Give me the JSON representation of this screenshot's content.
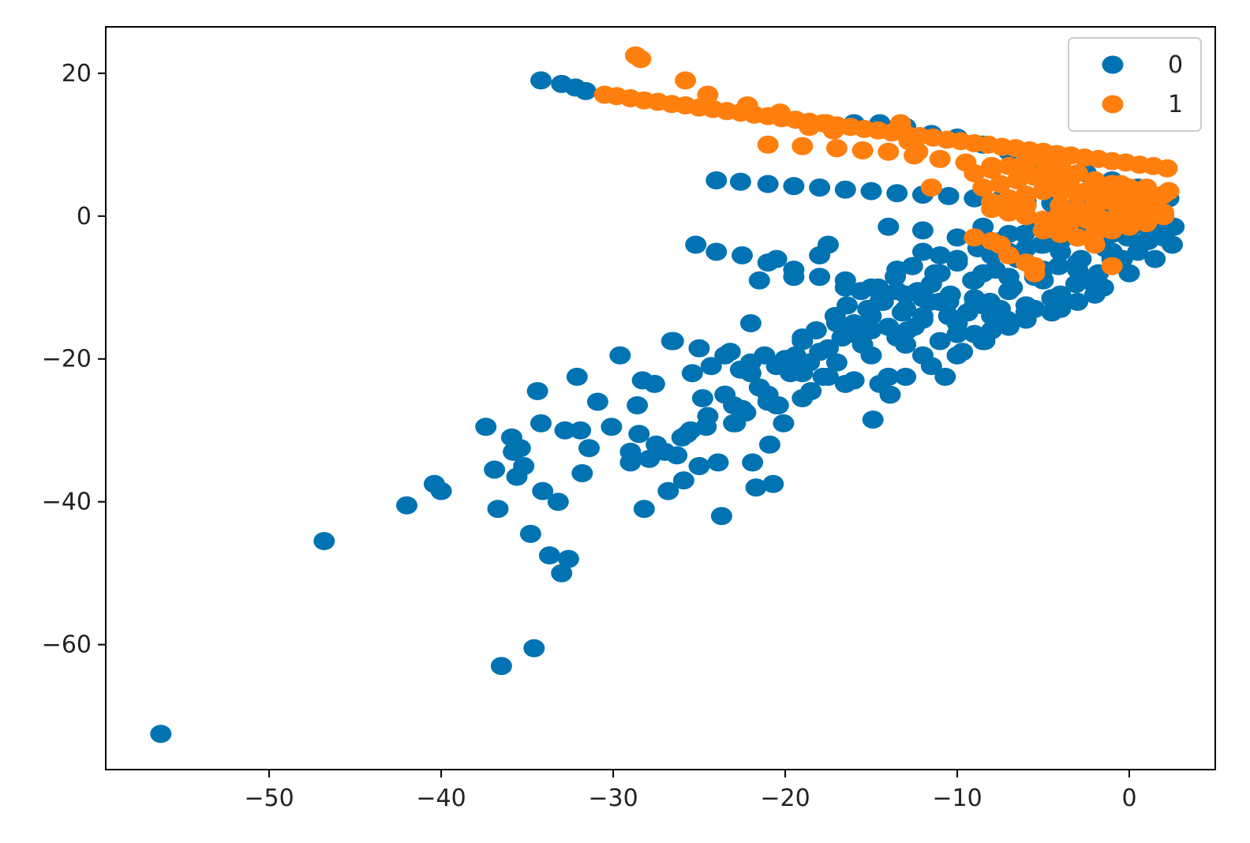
{
  "chart_data": {
    "type": "scatter",
    "title": "",
    "xlabel": "",
    "ylabel": "",
    "xlim": [
      -59.5,
      5.0
    ],
    "ylim": [
      -77.5,
      26.5
    ],
    "xticks": [
      -50,
      -40,
      -30,
      -20,
      -10,
      0
    ],
    "yticks": [
      20,
      0,
      -20,
      -40,
      -60
    ],
    "xtick_labels": [
      "−50",
      "−40",
      "−30",
      "−20",
      "−10",
      "0"
    ],
    "ytick_labels": [
      "20",
      "0",
      "−20",
      "−40",
      "−60"
    ],
    "grid": false,
    "legend_position": "top-right",
    "series": [
      {
        "name": "0",
        "color": "#0173b2",
        "x": [
          -56.3,
          -46.8,
          -42.0,
          -40.4,
          -40.0,
          -37.4,
          -36.9,
          -36.7,
          -36.5,
          -35.9,
          -35.8,
          -35.6,
          -35.4,
          -35.2,
          -34.8,
          -34.6,
          -34.4,
          -34.2,
          -34.1,
          -33.7,
          -33.2,
          -33.0,
          -32.8,
          -32.6,
          -32.1,
          -31.9,
          -31.8,
          -31.4,
          -30.9,
          -30.1,
          -29.6,
          -29.0,
          -28.6,
          -28.3,
          -28.2,
          -27.9,
          -27.6,
          -26.8,
          -26.6,
          -26.3,
          -25.9,
          -25.7,
          -25.4,
          -25.0,
          -24.8,
          -24.6,
          -24.3,
          -23.9,
          -23.7,
          -23.5,
          -23.2,
          -22.9,
          -22.6,
          -22.3,
          -21.9,
          -21.7,
          -21.5,
          -21.2,
          -20.9,
          -20.7,
          -20.4,
          -20.1,
          -19.7,
          -19.4,
          -19.0,
          -18.6,
          -18.2,
          -17.8,
          -17.5,
          -17.1,
          -16.7,
          -16.4,
          -16.0,
          -15.6,
          -15.2,
          -14.9,
          -14.6,
          -14.3,
          -13.9,
          -13.6,
          -13.2,
          -12.9,
          -12.6,
          -12.3,
          -12.0,
          -11.6,
          -11.3,
          -11.0,
          -10.7,
          -10.4,
          -10.0,
          -9.7,
          -9.4,
          -9.1,
          -8.8,
          -8.4,
          -8.1,
          -7.8,
          -7.5,
          -7.1,
          -6.8,
          -6.5,
          -6.1,
          -5.8,
          -5.5,
          -5.1,
          -4.8,
          -4.5,
          -4.1,
          -3.8,
          -3.4,
          -3.1,
          -2.8,
          -2.4,
          -2.1,
          -1.8,
          -1.4,
          -1.1,
          -0.8,
          -0.4,
          -0.1,
          0.3,
          0.7,
          1.1,
          1.5,
          1.9,
          2.3,
          2.6,
          -34.2,
          -33.0,
          -32.2,
          -31.6,
          -24.0,
          -22.6,
          -21.0,
          -19.5,
          -18.0,
          -16.5,
          -15.0,
          -13.5,
          -12.0,
          -10.5,
          -9.0,
          -7.5,
          -6.0,
          -4.5,
          -3.0,
          -1.5,
          0.0,
          1.5,
          -25.2,
          -24.0,
          -22.5,
          -21.0,
          -19.5,
          -18.0,
          -16.5,
          -15.0,
          -13.5,
          -12.0,
          -10.5,
          -9.0,
          -7.5,
          -6.0,
          -4.5,
          -3.0,
          -1.5,
          0.0,
          1.5,
          2.5,
          -26.5,
          -25.0,
          -23.5,
          -22.0,
          -20.5,
          -19.0,
          -17.5,
          -16.0,
          -14.5,
          -13.0,
          -11.5,
          -10.0,
          -8.5,
          -7.0,
          -5.5,
          -4.0,
          -2.5,
          -1.0,
          0.5,
          2.0,
          -16.0,
          -14.5,
          -13.0,
          -11.5,
          -10.0,
          -8.5,
          -7.0,
          -5.5,
          -4.0,
          -2.5,
          -1.0,
          0.5,
          2.0,
          -17.5,
          -14.0,
          -12.0,
          -10.0,
          -8.5,
          -7.0,
          -5.5,
          -4.0,
          -2.5,
          -1.0,
          0.5,
          -12.0,
          -10.0,
          -8.0,
          -6.0,
          -4.0,
          -2.0,
          0.0,
          -11.0,
          -9.0,
          -7.0,
          -5.0,
          -3.0,
          -1.0,
          1.0,
          -13.0,
          -11.0,
          -9.0,
          -7.0,
          -5.0,
          -3.0,
          -1.0,
          -12.0,
          -10.0,
          -8.0,
          -6.0,
          -4.0,
          -2.0,
          -10.0,
          -8.0,
          -6.0,
          -4.0,
          -2.0,
          -13.0,
          -11.0,
          -9.0,
          -7.0,
          -15.0,
          -12.5,
          -10.5,
          -8.5,
          -17.0,
          -15.0,
          -13.0,
          -11.0,
          -19.0,
          -16.0,
          -14.0,
          -12.0,
          -20.0,
          -18.0,
          -15.5,
          -13.5,
          -22.0,
          -19.5,
          -17.0,
          -15.0,
          -21.0,
          -18.5,
          -16.5,
          -14.0,
          -23.0,
          -21.0,
          -19.0,
          -24.5,
          -22.5,
          -20.5,
          -25.5,
          -23.0,
          -27.5,
          -26.0,
          -29.0,
          -27.0,
          -28.5,
          -22.0,
          -21.5,
          -20.5,
          -19.5,
          -18.0,
          -16.5,
          -14.5,
          -13.5,
          -11.5,
          -10.0,
          -8.5,
          -7.0,
          -6.0,
          -5.0,
          -4.0,
          -3.0,
          -2.0,
          -1.0,
          0.0,
          1.0,
          2.0
        ],
        "y": [
          -72.5,
          -45.5,
          -40.5,
          -37.5,
          -38.5,
          -29.5,
          -35.5,
          -41.0,
          -63.0,
          -31.0,
          -33.0,
          -36.5,
          -32.5,
          -35.0,
          -44.5,
          -60.5,
          -24.5,
          -29.0,
          -38.5,
          -47.5,
          -40.0,
          -50.0,
          -30.0,
          -48.0,
          -22.5,
          -30.0,
          -36.0,
          -32.5,
          -26.0,
          -29.5,
          -19.5,
          -33.0,
          -26.5,
          -23.0,
          -41.0,
          -34.0,
          -23.5,
          -38.5,
          -17.5,
          -33.5,
          -37.0,
          -30.5,
          -22.0,
          -35.0,
          -25.5,
          -29.5,
          -21.0,
          -34.5,
          -42.0,
          -25.0,
          -19.0,
          -29.0,
          -21.5,
          -27.5,
          -34.5,
          -38.0,
          -24.0,
          -19.5,
          -32.0,
          -37.5,
          -26.5,
          -29.0,
          -22.0,
          -19.5,
          -17.5,
          -20.5,
          -16.0,
          -22.5,
          -18.5,
          -14.0,
          -17.0,
          -12.5,
          -15.0,
          -10.5,
          -13.0,
          -28.5,
          -10.0,
          -12.0,
          -25.0,
          -8.5,
          -13.5,
          -16.0,
          -7.0,
          -10.5,
          -19.5,
          -12.0,
          -8.0,
          -5.5,
          -22.5,
          -11.0,
          -6.0,
          -19.0,
          -13.5,
          -9.0,
          -4.5,
          -17.5,
          -12.0,
          -7.5,
          -3.5,
          -14.5,
          -10.0,
          -6.0,
          -2.5,
          -13.0,
          -8.5,
          -4.0,
          -1.5,
          -11.5,
          -7.0,
          -3.0,
          -0.5,
          -9.5,
          -6.0,
          -2.5,
          0.5,
          -8.0,
          -4.5,
          -1.5,
          1.0,
          -6.0,
          -3.0,
          -0.5,
          1.5,
          -3.5,
          -1.5,
          0.5,
          2.5,
          -1.5,
          19.0,
          18.5,
          18.0,
          17.5,
          5.0,
          4.8,
          4.5,
          4.2,
          4.0,
          3.7,
          3.5,
          3.2,
          3.0,
          2.8,
          2.5,
          2.3,
          2.0,
          1.8,
          1.5,
          1.3,
          1.0,
          0.8,
          -4.0,
          -5.0,
          -5.5,
          -6.5,
          -7.5,
          -8.5,
          -9.0,
          -10.0,
          -10.5,
          -11.5,
          -12.0,
          -12.5,
          -13.0,
          -13.5,
          -13.5,
          -12.0,
          -10.0,
          -8.0,
          -6.0,
          -4.0,
          -17.5,
          -18.5,
          -19.5,
          -20.5,
          -21.0,
          -22.0,
          -22.5,
          -23.0,
          -23.5,
          -22.5,
          -21.0,
          -19.5,
          -17.5,
          -15.5,
          -13.0,
          -11.0,
          -9.0,
          -7.0,
          -5.0,
          -3.0,
          13.0,
          13.0,
          12.5,
          11.5,
          11.0,
          10.0,
          9.0,
          8.0,
          7.0,
          6.0,
          5.0,
          4.0,
          3.0,
          -4.0,
          -1.5,
          -2.0,
          -3.0,
          -1.5,
          -2.5,
          -1.0,
          -0.5,
          -1.0,
          0.0,
          0.5,
          -5.0,
          -6.0,
          -5.5,
          -4.5,
          -3.5,
          -2.5,
          -1.5,
          -8.0,
          -9.0,
          -8.5,
          -7.5,
          -6.5,
          -5.0,
          -3.5,
          -11.0,
          -12.0,
          -11.5,
          -10.5,
          -9.0,
          -7.5,
          -6.0,
          -14.0,
          -15.0,
          -14.0,
          -12.5,
          -11.0,
          -9.0,
          -16.5,
          -16.0,
          -14.5,
          -13.0,
          -11.0,
          -18.0,
          -17.5,
          -16.5,
          -15.0,
          -16.0,
          -15.5,
          -14.0,
          -12.5,
          -15.0,
          -14.0,
          -13.0,
          -12.0,
          -17.0,
          -16.5,
          -15.5,
          -14.5,
          -20.0,
          -19.0,
          -18.0,
          -17.0,
          -22.0,
          -21.5,
          -20.5,
          -19.5,
          -25.0,
          -24.5,
          -23.5,
          -22.5,
          -26.5,
          -26.0,
          -25.5,
          -28.0,
          -27.0,
          -26.5,
          -30.0,
          -29.0,
          -32.0,
          -31.0,
          -34.5,
          -33.0,
          -30.5,
          -15.0,
          -9.0,
          -6.0,
          -8.5,
          -5.5,
          -10.0,
          -12.0,
          -7.5,
          -9.5,
          -6.5,
          -8.0,
          -5.0,
          -6.5,
          -4.0,
          -5.0,
          -3.0,
          -3.5,
          -2.5,
          -2.0,
          -1.5,
          -1.0
        ]
      },
      {
        "name": "1",
        "color": "#ff7f0e",
        "x": [
          -28.7,
          -28.4,
          -25.8,
          -24.5,
          -22.2,
          -20.3,
          -18.6,
          -17.6,
          -17.2,
          -13.3,
          -12.8,
          -12.3,
          -30.5,
          -29.8,
          -29.0,
          -28.2,
          -27.4,
          -26.6,
          -25.8,
          -25.0,
          -24.2,
          -23.4,
          -22.6,
          -21.8,
          -21.0,
          -20.2,
          -19.4,
          -18.6,
          -17.8,
          -17.0,
          -16.2,
          -15.4,
          -14.6,
          -13.8,
          -13.0,
          -12.2,
          -11.4,
          -10.6,
          -9.8,
          -9.0,
          -8.2,
          -7.4,
          -6.6,
          -5.8,
          -5.0,
          -4.2,
          -3.4,
          -2.6,
          -1.8,
          -1.0,
          -0.2,
          0.6,
          1.4,
          2.2,
          -21.0,
          -19.0,
          -17.0,
          -15.5,
          -14.0,
          -12.5,
          -11.0,
          -9.5,
          -8.0,
          -6.5,
          -5.0,
          -3.5,
          -2.0,
          -0.5,
          1.0,
          2.3,
          -9.0,
          -8.0,
          -7.0,
          -6.0,
          -5.0,
          -4.0,
          -3.0,
          -2.0,
          -1.0,
          0.0,
          1.0,
          2.0,
          -8.5,
          -7.5,
          -6.5,
          -5.5,
          -4.5,
          -3.5,
          -2.5,
          -1.5,
          -0.5,
          0.5,
          1.5,
          -7.0,
          -6.0,
          -5.0,
          -4.0,
          -3.0,
          -2.0,
          -1.0,
          0.0,
          1.0,
          2.0,
          -8.0,
          -6.0,
          -4.0,
          -2.0,
          0.0,
          2.0,
          -9.0,
          -8.0,
          -7.5,
          -7.0,
          -6.0,
          -5.5,
          -5.5,
          -4.5,
          -3.5,
          -2.5,
          -1.5,
          -0.5,
          -2.0,
          -1.0,
          -5.0,
          -4.0,
          -3.0,
          -2.0,
          -1.0,
          0.0,
          1.0,
          -7.0,
          -6.0,
          -5.0,
          -4.0,
          -3.0,
          -2.0,
          -1.0,
          0.0,
          1.0,
          2.0,
          -11.5,
          -8.0
        ],
        "y": [
          22.5,
          22.0,
          19.0,
          17.0,
          15.5,
          14.5,
          12.5,
          13.0,
          12.0,
          13.0,
          10.5,
          9.0,
          17.0,
          16.8,
          16.5,
          16.2,
          16.0,
          15.7,
          15.5,
          15.2,
          15.0,
          14.7,
          14.5,
          14.2,
          14.0,
          13.7,
          13.5,
          13.2,
          13.0,
          12.7,
          12.5,
          12.2,
          12.0,
          11.7,
          11.5,
          11.2,
          11.0,
          10.7,
          10.5,
          10.2,
          10.0,
          9.7,
          9.5,
          9.2,
          9.0,
          8.7,
          8.5,
          8.2,
          8.0,
          7.7,
          7.5,
          7.2,
          7.0,
          6.7,
          10.0,
          9.8,
          9.5,
          9.2,
          9.0,
          8.5,
          8.0,
          7.5,
          7.0,
          6.5,
          6.0,
          5.5,
          5.0,
          4.5,
          4.0,
          3.5,
          6.0,
          6.5,
          7.0,
          7.5,
          8.0,
          7.0,
          6.0,
          5.0,
          4.5,
          4.0,
          3.5,
          3.0,
          4.0,
          4.5,
          5.0,
          5.5,
          5.5,
          4.5,
          3.5,
          3.0,
          2.5,
          2.0,
          1.5,
          2.5,
          3.0,
          3.5,
          3.5,
          3.0,
          2.5,
          2.0,
          1.5,
          1.0,
          0.5,
          1.0,
          1.5,
          1.5,
          1.0,
          0.5,
          0.0,
          -3.0,
          -3.5,
          -4.0,
          -5.5,
          -6.5,
          -7.0,
          -8.0,
          -1.5,
          -1.0,
          -0.5,
          -0.5,
          0.0,
          -4.0,
          -7.0,
          -2.0,
          -2.5,
          -3.0,
          -2.5,
          -2.0,
          -1.5,
          -1.0,
          0.5,
          0.0,
          -0.5,
          0.5,
          1.0,
          0.0,
          -0.5,
          0.0,
          0.5,
          0.0,
          4.0,
          2.0
        ]
      }
    ]
  }
}
